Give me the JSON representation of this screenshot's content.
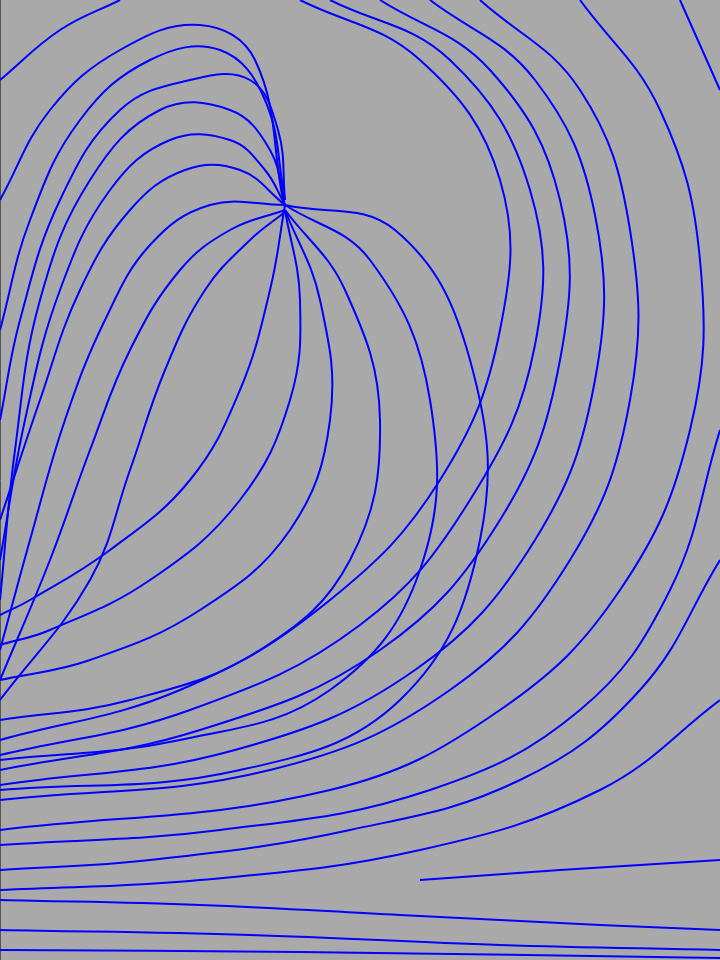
{
  "chart_data": {
    "type": "streamlines",
    "color": "#0000ff",
    "grid": false,
    "tick_labels": false,
    "xlim": [
      0,
      720
    ],
    "ylim": [
      960,
      0
    ],
    "series": [
      {
        "x": [
          0,
          15,
          40,
          90,
          160,
          230,
          270,
          285
        ],
        "values": [
          600,
          450,
          300,
          180,
          110,
          110,
          150,
          205
        ]
      },
      {
        "x": [
          0,
          25,
          60,
          110,
          170,
          230,
          265,
          285
        ],
        "values": [
          560,
          420,
          290,
          190,
          140,
          140,
          170,
          205
        ]
      },
      {
        "x": [
          0,
          40,
          80,
          130,
          185,
          240,
          285
        ],
        "values": [
          520,
          400,
          290,
          210,
          170,
          170,
          205
        ]
      },
      {
        "x": [
          0,
          30,
          65,
          105,
          150,
          210,
          285
        ],
        "values": [
          650,
          540,
          420,
          320,
          245,
          205,
          205
        ]
      },
      {
        "x": [
          0,
          50,
          90,
          130,
          180,
          230,
          285
        ],
        "values": [
          680,
          560,
          450,
          350,
          270,
          230,
          210
        ]
      },
      {
        "x": [
          0,
          90,
          130,
          165,
          205,
          250,
          285
        ],
        "values": [
          700,
          580,
          470,
          370,
          290,
          240,
          212
        ]
      },
      {
        "x": [
          0,
          30,
          80,
          150,
          220,
          265,
          285
        ],
        "values": [
          330,
          220,
          120,
          60,
          50,
          100,
          200
        ]
      },
      {
        "x": [
          0,
          50,
          120,
          200,
          255,
          283
        ],
        "values": [
          200,
          110,
          50,
          25,
          60,
          200
        ]
      },
      {
        "x": [
          0,
          60,
          120
        ],
        "values": [
          80,
          30,
          0
        ]
      },
      {
        "x": [
          0,
          20,
          60,
          120,
          190,
          250,
          278,
          285
        ],
        "values": [
          420,
          320,
          200,
          110,
          80,
          80,
          130,
          200
        ]
      },
      {
        "x": [
          285,
          300,
          290,
          240,
          150,
          50,
          0
        ],
        "values": [
          210,
          300,
          400,
          500,
          580,
          630,
          645
        ]
      },
      {
        "x": [
          285,
          320,
          330,
          290,
          200,
          90,
          0
        ],
        "values": [
          210,
          300,
          420,
          530,
          610,
          660,
          680
        ]
      },
      {
        "x": [
          285,
          345,
          380,
          350,
          260,
          130,
          0
        ],
        "values": [
          210,
          290,
          420,
          560,
          650,
          700,
          720
        ]
      },
      {
        "x": [
          285,
          370,
          430,
          420,
          330,
          180,
          0
        ],
        "values": [
          205,
          260,
          400,
          570,
          690,
          740,
          760
        ]
      },
      {
        "x": [
          285,
          270,
          240,
          190,
          110,
          30,
          0
        ],
        "values": [
          205,
          290,
          390,
          480,
          550,
          600,
          615
        ]
      },
      {
        "x": [
          285,
          395,
          470,
          480,
          400,
          240,
          0
        ],
        "values": [
          205,
          230,
          360,
          540,
          700,
          770,
          790
        ]
      },
      {
        "x": [
          300,
          420,
          500,
          500,
          440,
          330,
          180,
          0
        ],
        "values": [
          0,
          60,
          180,
          330,
          480,
          600,
          690,
          740
        ]
      },
      {
        "x": [
          330,
          450,
          530,
          535,
          470,
          360,
          190,
          0
        ],
        "values": [
          0,
          60,
          190,
          345,
          500,
          625,
          710,
          755
        ]
      },
      {
        "x": [
          380,
          490,
          560,
          560,
          500,
          380,
          200,
          0
        ],
        "values": [
          0,
          70,
          200,
          360,
          520,
          650,
          730,
          770
        ]
      },
      {
        "x": [
          430,
          535,
          595,
          595,
          535,
          415,
          235,
          0
        ],
        "values": [
          0,
          80,
          215,
          380,
          540,
          670,
          750,
          785
        ]
      },
      {
        "x": [
          480,
          580,
          630,
          630,
          570,
          450,
          270,
          0
        ],
        "values": [
          0,
          90,
          230,
          400,
          560,
          690,
          770,
          800
        ]
      },
      {
        "x": [
          580,
          660,
          700,
          690,
          620,
          500,
          330,
          0
        ],
        "values": [
          0,
          110,
          260,
          430,
          590,
          710,
          790,
          830
        ]
      },
      {
        "x": [
          680,
          720
        ],
        "values": [
          0,
          90
        ]
      },
      {
        "x": [
          720,
          670,
          580,
          430,
          220,
          0
        ],
        "values": [
          430,
          590,
          710,
          790,
          830,
          845
        ]
      },
      {
        "x": [
          720,
          640,
          520,
          350,
          150,
          0
        ],
        "values": [
          560,
          690,
          780,
          830,
          860,
          870
        ]
      },
      {
        "x": [
          720,
          600,
          420,
          200,
          0
        ],
        "values": [
          700,
          790,
          850,
          880,
          890
        ]
      },
      {
        "x": [
          0,
          200,
          400,
          600,
          720
        ],
        "values": [
          900,
          905,
          915,
          925,
          930
        ]
      },
      {
        "x": [
          0,
          250,
          500,
          720
        ],
        "values": [
          930,
          935,
          945,
          950
        ]
      },
      {
        "x": [
          0,
          300,
          720
        ],
        "values": [
          950,
          952,
          958
        ]
      },
      {
        "x": [
          420,
          560,
          720
        ],
        "values": [
          880,
          870,
          860
        ]
      }
    ]
  }
}
